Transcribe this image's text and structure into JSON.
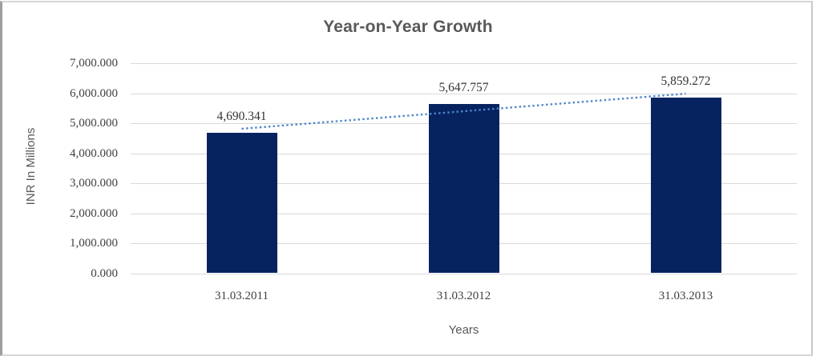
{
  "chart_data": {
    "type": "bar",
    "title": "Year-on-Year Growth",
    "xlabel": "Years",
    "ylabel": "INR In Millions",
    "categories": [
      "31.03.2011",
      "31.03.2012",
      "31.03.2013"
    ],
    "values": [
      4690.341,
      5647.757,
      5859.272
    ],
    "data_labels": [
      "4,690.341",
      "5,647.757",
      "5,859.272"
    ],
    "ylim": [
      0,
      7000
    ],
    "ytick_step": 1000,
    "ytick_labels": [
      "0.000",
      "1,000.000",
      "2,000.000",
      "3,000.000",
      "4,000.000",
      "5,000.000",
      "6,000.000",
      "7,000.000"
    ],
    "grid": true,
    "legend": "none",
    "trendline": {
      "type": "linear",
      "style": "dotted",
      "endpoint_values": [
        4814.658,
        5983.589
      ]
    },
    "colors": {
      "bar": "#062360",
      "trendline": "#4e86c8",
      "gridline": "#d9d9d9",
      "title": "#595959",
      "tick_label": "#404040"
    }
  }
}
